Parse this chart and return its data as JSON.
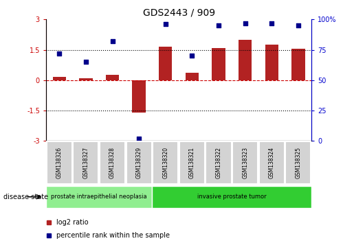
{
  "title": "GDS2443 / 909",
  "samples": [
    "GSM138326",
    "GSM138327",
    "GSM138328",
    "GSM138329",
    "GSM138320",
    "GSM138321",
    "GSM138322",
    "GSM138323",
    "GSM138324",
    "GSM138325"
  ],
  "log2_ratio": [
    0.15,
    0.1,
    0.25,
    -1.6,
    1.65,
    0.35,
    1.6,
    2.0,
    1.75,
    1.55
  ],
  "percentile_rank": [
    72,
    65,
    82,
    2,
    96,
    70,
    95,
    97,
    97,
    95
  ],
  "bar_color": "#b22222",
  "dot_color": "#00008b",
  "ylim_left": [
    -3,
    3
  ],
  "ylim_right": [
    0,
    100
  ],
  "yticks_left": [
    -3,
    -1.5,
    0,
    1.5,
    3
  ],
  "yticks_right": [
    0,
    25,
    50,
    75,
    100
  ],
  "ytick_labels_right": [
    "0",
    "25",
    "50",
    "75",
    "100%"
  ],
  "hlines": [
    0,
    1.5,
    -1.5
  ],
  "hline_styles": [
    "dashed_red",
    "dotted_black",
    "dotted_black"
  ],
  "disease_groups": [
    {
      "label": "prostate intraepithelial neoplasia",
      "start": 0,
      "end": 4,
      "color": "#90ee90"
    },
    {
      "label": "invasive prostate tumor",
      "start": 4,
      "end": 10,
      "color": "#32cd32"
    }
  ],
  "legend_items": [
    {
      "label": "log2 ratio",
      "color": "#b22222",
      "marker": "s"
    },
    {
      "label": "percentile rank within the sample",
      "color": "#00008b",
      "marker": "s"
    }
  ],
  "disease_state_label": "disease state",
  "background_color": "#ffffff",
  "plot_bg_color": "#ffffff",
  "grid_color": "#cccccc"
}
